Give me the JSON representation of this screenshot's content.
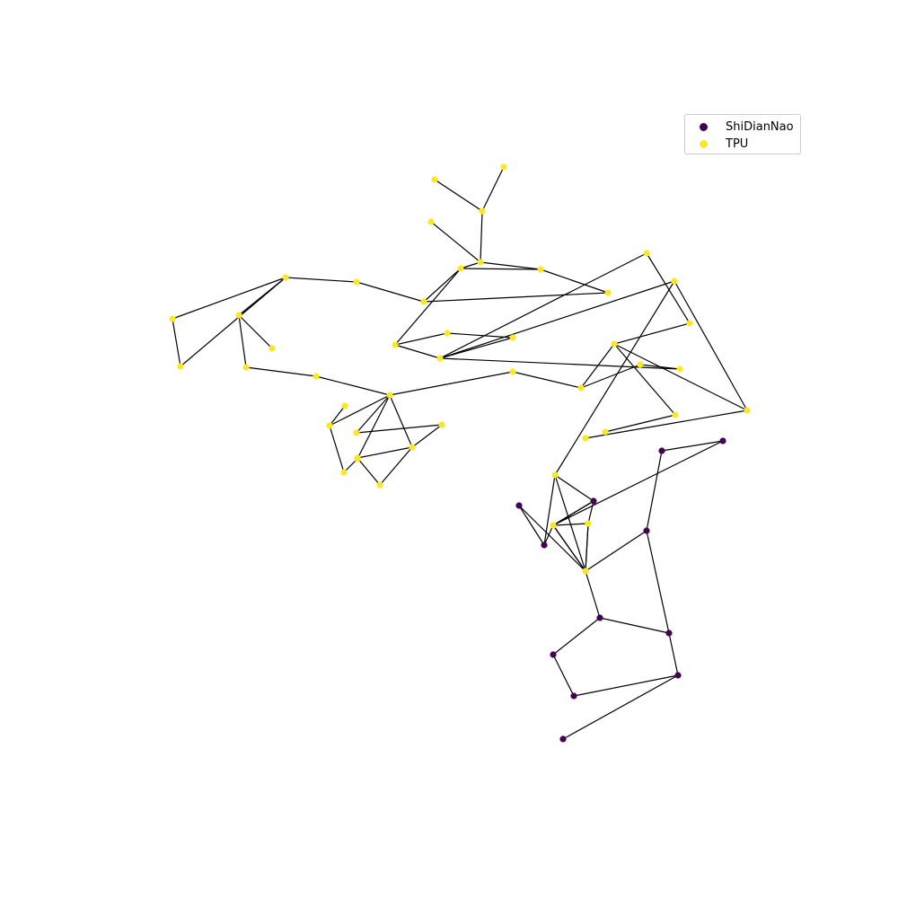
{
  "colors": {
    "ShiDianNao": "#440154",
    "TPU": "#fde725",
    "edge": "#000000"
  },
  "legend": [
    {
      "label": "ShiDianNao",
      "class": "ShiDianNao"
    },
    {
      "label": "TPU",
      "class": "TPU"
    }
  ],
  "nodes": [
    {
      "id": 0,
      "class": "TPU"
    },
    {
      "id": 1,
      "class": "TPU"
    },
    {
      "id": 2,
      "class": "TPU"
    },
    {
      "id": 3,
      "class": "TPU"
    },
    {
      "id": 4,
      "class": "TPU"
    },
    {
      "id": 5,
      "class": "TPU"
    },
    {
      "id": 6,
      "class": "TPU"
    },
    {
      "id": 7,
      "class": "TPU"
    },
    {
      "id": 8,
      "class": "TPU"
    },
    {
      "id": 9,
      "class": "TPU"
    },
    {
      "id": 10,
      "class": "TPU"
    },
    {
      "id": 11,
      "class": "TPU"
    },
    {
      "id": 12,
      "class": "TPU"
    },
    {
      "id": 13,
      "class": "TPU"
    },
    {
      "id": 14,
      "class": "TPU"
    },
    {
      "id": 15,
      "class": "TPU"
    },
    {
      "id": 16,
      "class": "TPU"
    },
    {
      "id": 17,
      "class": "TPU"
    },
    {
      "id": 18,
      "class": "TPU"
    },
    {
      "id": 19,
      "class": "TPU"
    },
    {
      "id": 20,
      "class": "TPU"
    },
    {
      "id": 21,
      "class": "TPU"
    },
    {
      "id": 22,
      "class": "TPU"
    },
    {
      "id": 23,
      "class": "TPU"
    },
    {
      "id": 24,
      "class": "TPU"
    },
    {
      "id": 25,
      "class": "TPU"
    },
    {
      "id": 26,
      "class": "TPU"
    },
    {
      "id": 27,
      "class": "TPU"
    },
    {
      "id": 28,
      "class": "TPU"
    },
    {
      "id": 29,
      "class": "TPU"
    },
    {
      "id": 30,
      "class": "TPU"
    },
    {
      "id": 31,
      "class": "TPU"
    },
    {
      "id": 32,
      "class": "TPU"
    },
    {
      "id": 33,
      "class": "TPU"
    },
    {
      "id": 34,
      "class": "TPU"
    },
    {
      "id": 35,
      "class": "TPU"
    },
    {
      "id": 36,
      "class": "TPU"
    },
    {
      "id": 37,
      "class": "TPU"
    },
    {
      "id": 38,
      "class": "TPU"
    },
    {
      "id": 39,
      "class": "TPU"
    },
    {
      "id": 40,
      "class": "TPU"
    },
    {
      "id": 41,
      "class": "TPU"
    },
    {
      "id": 42,
      "class": "TPU"
    },
    {
      "id": 43,
      "class": "TPU"
    },
    {
      "id": 44,
      "class": "TPU"
    },
    {
      "id": 45,
      "class": "TPU"
    },
    {
      "id": 46,
      "class": "ShiDianNao"
    },
    {
      "id": 47,
      "class": "ShiDianNao"
    },
    {
      "id": 48,
      "class": "TPU"
    },
    {
      "id": 49,
      "class": "ShiDianNao"
    },
    {
      "id": 50,
      "class": "ShiDianNao"
    },
    {
      "id": 51,
      "class": "ShiDianNao"
    },
    {
      "id": 52,
      "class": "TPU"
    },
    {
      "id": 53,
      "class": "TPU"
    },
    {
      "id": 54,
      "class": "ShiDianNao"
    },
    {
      "id": 55,
      "class": "TPU"
    },
    {
      "id": 56,
      "class": "ShiDianNao"
    },
    {
      "id": 57,
      "class": "ShiDianNao"
    },
    {
      "id": 58,
      "class": "ShiDianNao"
    },
    {
      "id": 59,
      "class": "ShiDianNao"
    },
    {
      "id": 60,
      "class": "ShiDianNao"
    },
    {
      "id": 61,
      "class": "ShiDianNao"
    }
  ],
  "edges": [
    [
      0,
      2
    ],
    [
      1,
      2
    ],
    [
      2,
      4
    ],
    [
      3,
      4
    ],
    [
      4,
      5
    ],
    [
      5,
      6
    ],
    [
      4,
      6
    ],
    [
      6,
      7
    ],
    [
      5,
      8
    ],
    [
      7,
      8
    ],
    [
      8,
      9
    ],
    [
      9,
      10
    ],
    [
      10,
      11
    ],
    [
      10,
      12
    ],
    [
      11,
      12
    ],
    [
      10,
      14
    ],
    [
      13,
      14
    ],
    [
      14,
      15
    ],
    [
      15,
      16
    ],
    [
      16,
      21
    ],
    [
      17,
      18
    ],
    [
      18,
      19
    ],
    [
      18,
      21
    ],
    [
      19,
      20
    ],
    [
      20,
      21
    ],
    [
      21,
      22
    ],
    [
      21,
      23
    ],
    [
      22,
      26
    ],
    [
      23,
      26
    ],
    [
      23,
      25
    ],
    [
      24,
      25
    ],
    [
      23,
      24
    ],
    [
      5,
      28
    ],
    [
      28,
      27
    ],
    [
      27,
      29
    ],
    [
      29,
      30
    ],
    [
      28,
      30
    ],
    [
      21,
      31
    ],
    [
      31,
      32
    ],
    [
      32,
      33
    ],
    [
      33,
      34
    ],
    [
      34,
      30
    ],
    [
      32,
      38
    ],
    [
      30,
      35
    ],
    [
      30,
      36
    ],
    [
      36,
      40
    ],
    [
      35,
      37
    ],
    [
      37,
      38
    ],
    [
      38,
      39
    ],
    [
      38,
      40
    ],
    [
      40,
      42
    ],
    [
      39,
      41
    ],
    [
      36,
      43
    ],
    [
      43,
      44
    ],
    [
      43,
      45
    ],
    [
      44,
      52
    ],
    [
      45,
      52
    ],
    [
      44,
      48
    ],
    [
      48,
      55
    ],
    [
      45,
      53
    ],
    [
      53,
      55
    ],
    [
      55,
      49
    ],
    [
      49,
      51
    ],
    [
      52,
      53
    ],
    [
      53,
      54
    ],
    [
      52,
      54
    ],
    [
      52,
      50
    ],
    [
      50,
      51
    ],
    [
      55,
      56
    ],
    [
      55,
      46
    ],
    [
      46,
      47
    ],
    [
      48,
      47
    ],
    [
      43,
      47
    ],
    [
      56,
      57
    ],
    [
      56,
      58
    ],
    [
      57,
      59
    ],
    [
      58,
      60
    ],
    [
      59,
      60
    ],
    [
      59,
      61
    ],
    [
      57,
      49
    ]
  ]
}
